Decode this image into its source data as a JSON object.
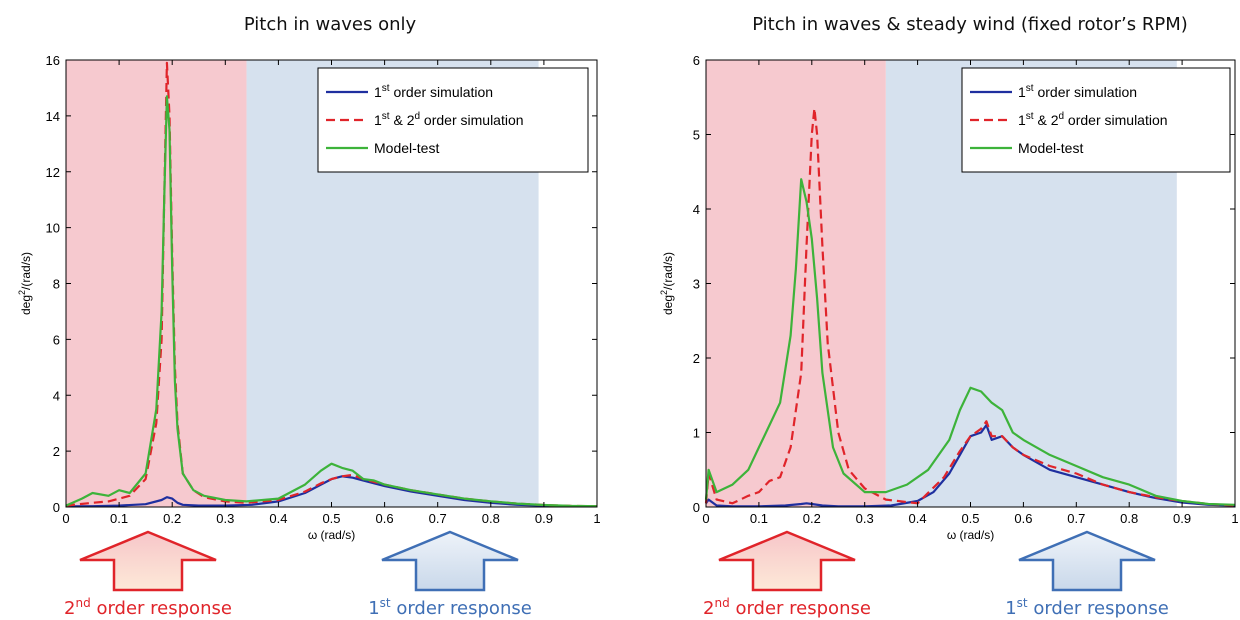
{
  "chart_data": [
    {
      "type": "line",
      "title": "Pitch in waves only",
      "xlabel": "ω (rad/s)",
      "ylabel": "deg²/(rad/s)",
      "xlim": [
        0,
        1
      ],
      "ylim": [
        0,
        16
      ],
      "xticks": [
        "0",
        "0.1",
        "0.2",
        "0.3",
        "0.4",
        "0.5",
        "0.6",
        "0.7",
        "0.8",
        "0.9",
        "1"
      ],
      "yticks": [
        "0",
        "2",
        "4",
        "6",
        "8",
        "10",
        "12",
        "14",
        "16"
      ],
      "legend_placement": "top-right",
      "shaded_regions": [
        {
          "from": 0,
          "to": 0.34,
          "color": "#f6c9cf"
        },
        {
          "from": 0.34,
          "to": 0.89,
          "color": "#d6e1ee"
        }
      ],
      "series": [
        {
          "name": "1st order simulation",
          "color": "#1f2f9f",
          "dash": "solid",
          "x": [
            0,
            0.05,
            0.1,
            0.15,
            0.18,
            0.19,
            0.2,
            0.21,
            0.22,
            0.25,
            0.3,
            0.35,
            0.4,
            0.45,
            0.48,
            0.5,
            0.52,
            0.54,
            0.56,
            0.58,
            0.6,
            0.65,
            0.7,
            0.75,
            0.8,
            0.85,
            0.9,
            0.95,
            1
          ],
          "y": [
            0.02,
            0.03,
            0.05,
            0.1,
            0.25,
            0.35,
            0.3,
            0.15,
            0.08,
            0.05,
            0.05,
            0.08,
            0.2,
            0.5,
            0.8,
            1.0,
            1.1,
            1.05,
            0.95,
            0.85,
            0.75,
            0.55,
            0.4,
            0.25,
            0.15,
            0.08,
            0.05,
            0.03,
            0.02
          ]
        },
        {
          "name": "1st & 2d order simulation",
          "color": "#e0242a",
          "dash": "dashed",
          "x": [
            0,
            0.05,
            0.08,
            0.1,
            0.12,
            0.15,
            0.17,
            0.18,
            0.185,
            0.19,
            0.195,
            0.2,
            0.205,
            0.21,
            0.22,
            0.24,
            0.26,
            0.3,
            0.34,
            0.4,
            0.45,
            0.48,
            0.5,
            0.52,
            0.54,
            0.56,
            0.58,
            0.6,
            0.65,
            0.7,
            0.75,
            0.8,
            0.85,
            0.9,
            0.95,
            1
          ],
          "y": [
            0.05,
            0.15,
            0.2,
            0.3,
            0.4,
            1.0,
            3.0,
            6.0,
            11.0,
            15.9,
            14.0,
            9.0,
            5.0,
            3.0,
            1.2,
            0.6,
            0.35,
            0.2,
            0.15,
            0.25,
            0.55,
            0.85,
            1.0,
            1.1,
            1.15,
            1.0,
            0.9,
            0.8,
            0.6,
            0.45,
            0.3,
            0.2,
            0.12,
            0.07,
            0.04,
            0.03
          ]
        },
        {
          "name": "Model-test",
          "color": "#3db33a",
          "dash": "solid",
          "x": [
            0,
            0.03,
            0.05,
            0.08,
            0.1,
            0.12,
            0.15,
            0.17,
            0.18,
            0.185,
            0.19,
            0.195,
            0.2,
            0.205,
            0.21,
            0.22,
            0.24,
            0.26,
            0.3,
            0.34,
            0.4,
            0.45,
            0.48,
            0.5,
            0.52,
            0.54,
            0.56,
            0.58,
            0.6,
            0.65,
            0.7,
            0.75,
            0.8,
            0.85,
            0.9,
            0.95,
            1
          ],
          "y": [
            0.05,
            0.3,
            0.5,
            0.4,
            0.6,
            0.5,
            1.2,
            3.5,
            7.0,
            11.0,
            14.7,
            13.5,
            8.5,
            4.5,
            2.8,
            1.2,
            0.6,
            0.4,
            0.25,
            0.2,
            0.3,
            0.8,
            1.3,
            1.55,
            1.4,
            1.3,
            1.0,
            0.95,
            0.8,
            0.6,
            0.45,
            0.3,
            0.2,
            0.12,
            0.07,
            0.04,
            0.03
          ]
        }
      ]
    },
    {
      "type": "line",
      "title": "Pitch in waves & steady wind (fixed rotor’s RPM)",
      "xlabel": "ω (rad/s)",
      "ylabel": "deg²/(rad/s)",
      "xlim": [
        0,
        1
      ],
      "ylim": [
        0,
        6
      ],
      "xticks": [
        "0",
        "0.1",
        "0.2",
        "0.3",
        "0.4",
        "0.5",
        "0.6",
        "0.7",
        "0.8",
        "0.9",
        "1"
      ],
      "yticks": [
        "0",
        "1",
        "2",
        "3",
        "4",
        "5",
        "6"
      ],
      "legend_placement": "top-right",
      "shaded_regions": [
        {
          "from": 0,
          "to": 0.34,
          "color": "#f6c9cf"
        },
        {
          "from": 0.34,
          "to": 0.89,
          "color": "#d6e1ee"
        }
      ],
      "series": [
        {
          "name": "1st order simulation",
          "color": "#1f2f9f",
          "dash": "solid",
          "x": [
            0,
            0.005,
            0.02,
            0.05,
            0.1,
            0.15,
            0.18,
            0.19,
            0.2,
            0.22,
            0.25,
            0.3,
            0.35,
            0.4,
            0.43,
            0.46,
            0.48,
            0.5,
            0.52,
            0.53,
            0.54,
            0.56,
            0.58,
            0.6,
            0.65,
            0.7,
            0.75,
            0.8,
            0.85,
            0.9,
            0.95,
            1
          ],
          "y": [
            0.05,
            0.1,
            0.02,
            0.01,
            0.01,
            0.02,
            0.04,
            0.05,
            0.04,
            0.02,
            0.01,
            0.01,
            0.02,
            0.08,
            0.2,
            0.45,
            0.7,
            0.95,
            1.0,
            1.1,
            0.9,
            0.95,
            0.8,
            0.7,
            0.5,
            0.4,
            0.3,
            0.2,
            0.12,
            0.06,
            0.03,
            0.02
          ]
        },
        {
          "name": "1st & 2d order simulation",
          "color": "#e0242a",
          "dash": "dashed",
          "x": [
            0,
            0.005,
            0.02,
            0.05,
            0.08,
            0.1,
            0.12,
            0.14,
            0.16,
            0.18,
            0.19,
            0.2,
            0.205,
            0.21,
            0.22,
            0.23,
            0.25,
            0.27,
            0.3,
            0.34,
            0.4,
            0.45,
            0.48,
            0.5,
            0.52,
            0.53,
            0.54,
            0.56,
            0.58,
            0.6,
            0.65,
            0.7,
            0.75,
            0.8,
            0.85,
            0.9,
            0.95,
            1
          ],
          "y": [
            0.05,
            0.45,
            0.1,
            0.05,
            0.15,
            0.2,
            0.35,
            0.4,
            0.8,
            1.8,
            3.5,
            5.0,
            5.35,
            5.0,
            3.5,
            2.2,
            1.0,
            0.5,
            0.25,
            0.1,
            0.05,
            0.4,
            0.75,
            0.95,
            1.05,
            1.15,
            0.95,
            0.95,
            0.8,
            0.7,
            0.55,
            0.45,
            0.3,
            0.2,
            0.13,
            0.08,
            0.04,
            0.02
          ]
        },
        {
          "name": "Model-test",
          "color": "#3db33a",
          "dash": "solid",
          "x": [
            0,
            0.005,
            0.02,
            0.05,
            0.08,
            0.1,
            0.12,
            0.14,
            0.16,
            0.17,
            0.18,
            0.19,
            0.2,
            0.21,
            0.22,
            0.24,
            0.26,
            0.3,
            0.34,
            0.38,
            0.42,
            0.46,
            0.48,
            0.5,
            0.52,
            0.54,
            0.56,
            0.58,
            0.6,
            0.65,
            0.7,
            0.75,
            0.8,
            0.85,
            0.9,
            0.95,
            1
          ],
          "y": [
            0.1,
            0.5,
            0.2,
            0.3,
            0.5,
            0.8,
            1.1,
            1.4,
            2.3,
            3.2,
            4.4,
            4.1,
            3.6,
            2.8,
            1.8,
            0.8,
            0.45,
            0.2,
            0.2,
            0.3,
            0.5,
            0.9,
            1.3,
            1.6,
            1.55,
            1.4,
            1.3,
            1.0,
            0.9,
            0.7,
            0.55,
            0.4,
            0.3,
            0.15,
            0.08,
            0.04,
            0.03
          ]
        }
      ]
    }
  ],
  "response_labels": [
    {
      "text_main": "2",
      "text_sup": "nd",
      "text_rest": " order response",
      "color": "#e0242a"
    },
    {
      "text_main": "1",
      "text_sup": "st",
      "text_rest": " order response",
      "color": "#3f6fb5"
    },
    {
      "text_main": "2",
      "text_sup": "nd",
      "text_rest": " order response",
      "color": "#e0242a"
    },
    {
      "text_main": "1",
      "text_sup": "st",
      "text_rest": " order response",
      "color": "#3f6fb5"
    }
  ],
  "legend_labels": {
    "first": {
      "a": "1",
      "sup": "st",
      "b": " order simulation"
    },
    "both": {
      "a": "1",
      "sup1": "st",
      "mid": " & 2",
      "sup2": "d",
      "b": " order simulation"
    },
    "model": "Model-test"
  },
  "ylabel_parts": {
    "a": "deg",
    "sup": "2",
    "b": "/(rad/s)"
  }
}
